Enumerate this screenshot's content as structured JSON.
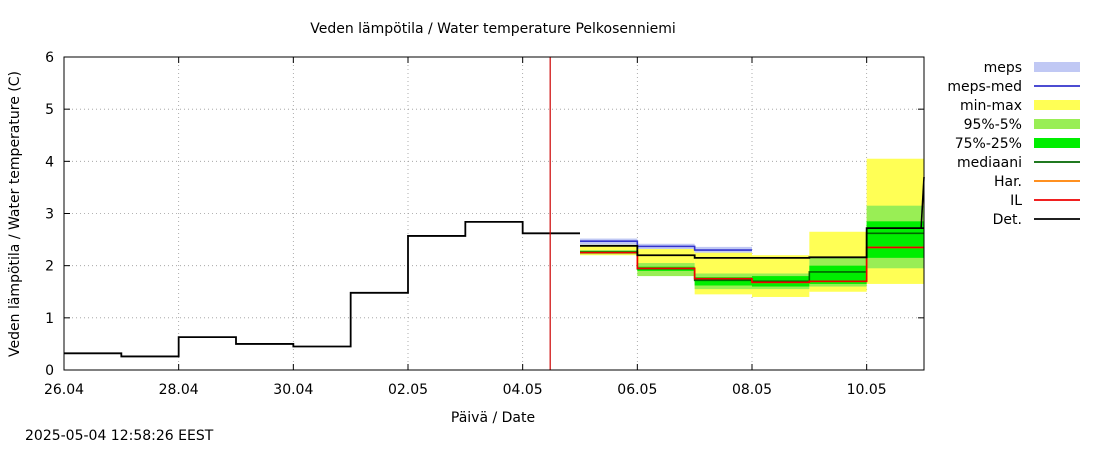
{
  "chart_data": {
    "type": "line",
    "title": "Veden lämpötila / Water temperature Pelkosenniemi",
    "xlabel": "Päivä / Date",
    "ylabel": "Veden lämpötila / Water temperature (C)",
    "xlim": [
      0,
      15
    ],
    "ylim": [
      0,
      6
    ],
    "x_tick_values": [
      0,
      2,
      4,
      6,
      8,
      10,
      12,
      14
    ],
    "x_tick_labels": [
      "26.04",
      "28.04",
      "30.04",
      "02.05",
      "04.05",
      "06.05",
      "08.05",
      "10.05"
    ],
    "y_ticks": [
      0,
      1,
      2,
      3,
      4,
      5,
      6
    ],
    "grid": true,
    "current_time_x": 8.48,
    "observed": {
      "name": "Det.",
      "x": [
        0,
        1,
        1,
        2,
        2,
        3,
        3,
        4,
        4,
        5,
        5,
        6,
        6,
        7,
        7,
        8,
        8,
        9
      ],
      "y": [
        0.32,
        0.32,
        0.26,
        0.26,
        0.63,
        0.63,
        0.5,
        0.5,
        0.45,
        0.45,
        1.48,
        1.48,
        2.57,
        2.57,
        2.84,
        2.84,
        2.62,
        2.62
      ]
    },
    "forecast_periods": [
      9,
      10,
      11,
      12,
      13,
      14,
      15
    ],
    "bands": [
      {
        "name": "min-max",
        "color": "#ffff55",
        "low": [
          2.2,
          1.88,
          1.45,
          1.4,
          1.5,
          1.65
        ],
        "high": [
          2.45,
          2.38,
          2.25,
          2.2,
          2.65,
          4.05
        ]
      },
      {
        "name": "95%-5%",
        "color": "#99ee55",
        "low": [
          2.22,
          1.8,
          1.55,
          1.55,
          1.6,
          1.95
        ],
        "high": [
          2.3,
          2.05,
          1.85,
          1.85,
          2.15,
          3.15
        ]
      },
      {
        "name": "75%-25%",
        "color": "#00ee00",
        "low": [
          2.24,
          1.9,
          1.62,
          1.6,
          1.65,
          2.15
        ],
        "high": [
          2.28,
          1.98,
          1.78,
          1.8,
          2.0,
          2.85
        ]
      }
    ],
    "meps_band": {
      "name": "meps",
      "color": "#c0c8f4",
      "low": [
        2.4,
        2.32,
        2.25
      ],
      "high": [
        2.52,
        2.42,
        2.36
      ]
    },
    "lines": [
      {
        "name": "meps-med",
        "color": "#3333cc",
        "values": [
          2.47,
          2.37,
          2.3
        ]
      },
      {
        "name": "mediaani",
        "color": "#006600",
        "values": [
          2.26,
          1.94,
          1.72,
          1.7,
          1.88,
          2.62
        ]
      },
      {
        "name": "Har.",
        "color": "#ff8000",
        "values": [
          2.25,
          1.95,
          1.75,
          1.68,
          1.7,
          2.35
        ]
      },
      {
        "name": "IL",
        "color": "#ee0000",
        "values": [
          2.25,
          1.95,
          1.75,
          1.68,
          1.7,
          2.35
        ]
      },
      {
        "name": "Det.",
        "color": "#000000",
        "values": [
          2.38,
          2.2,
          2.15,
          2.15,
          2.16,
          2.72
        ]
      }
    ],
    "late_spike": {
      "x": [
        14.95,
        15.0
      ],
      "y": [
        2.72,
        3.7
      ]
    },
    "legend": [
      {
        "name": "meps",
        "kind": "band",
        "color": "#c0c8f4"
      },
      {
        "name": "meps-med",
        "kind": "line",
        "color": "#3333cc"
      },
      {
        "name": "min-max",
        "kind": "band",
        "color": "#ffff55"
      },
      {
        "name": "95%-5%",
        "kind": "band",
        "color": "#99ee55"
      },
      {
        "name": "75%-25%",
        "kind": "band",
        "color": "#00ee00"
      },
      {
        "name": "mediaani",
        "kind": "line",
        "color": "#006600"
      },
      {
        "name": "Har.",
        "kind": "line",
        "color": "#ff8000"
      },
      {
        "name": "IL",
        "kind": "line",
        "color": "#ee0000"
      },
      {
        "name": "Det.",
        "kind": "line",
        "color": "#000000"
      }
    ],
    "legend_position": "right"
  },
  "timestamp": "2025-05-04 12:58:26 EEST"
}
